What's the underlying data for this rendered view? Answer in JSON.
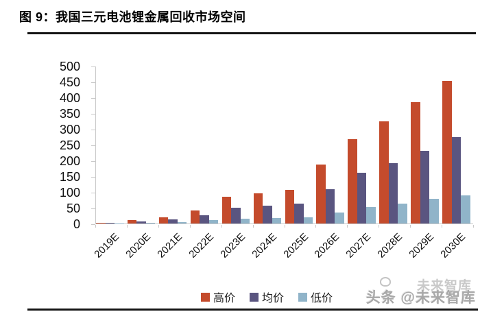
{
  "header": {
    "title": "图 9：我国三元电池锂金属回收市场空间"
  },
  "chart_data": {
    "type": "bar",
    "title": "我国三元电池锂金属回收市场空间",
    "categories": [
      "2019E",
      "2020E",
      "2021E",
      "2022E",
      "2023E",
      "2024E",
      "2025E",
      "2026E",
      "2027E",
      "2028E",
      "2029E",
      "2030E"
    ],
    "series": [
      {
        "name": "高价",
        "color": "#C44B2C",
        "values": [
          3,
          11,
          20,
          42,
          84,
          95,
          107,
          186,
          268,
          323,
          385,
          453
        ]
      },
      {
        "name": "均价",
        "color": "#5A5580",
        "values": [
          2,
          7,
          12,
          27,
          50,
          56,
          64,
          109,
          160,
          192,
          230,
          274
        ]
      },
      {
        "name": "低价",
        "color": "#90B4C9",
        "values": [
          1,
          2,
          4,
          10,
          15,
          17,
          20,
          35,
          53,
          63,
          78,
          90
        ]
      }
    ],
    "xlabel": "",
    "ylabel": "",
    "ylim": [
      0,
      500
    ],
    "yticks": [
      0,
      50,
      100,
      150,
      200,
      250,
      300,
      350,
      400,
      450,
      500
    ],
    "grid": false,
    "legend_position": "bottom",
    "axis_color": "#c9c9c9"
  },
  "watermark": {
    "text": "头条 @未来智库",
    "ghost_text": "未来智库"
  }
}
